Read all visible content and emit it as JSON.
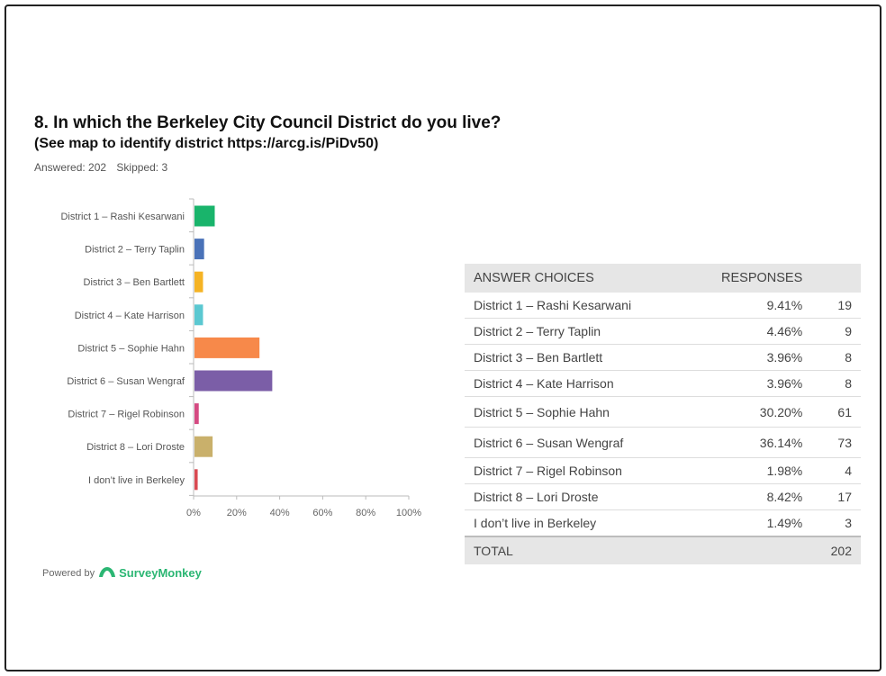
{
  "question": {
    "title": "8. In which the Berkeley City Council District do you live?",
    "subtitle": "(See map to identify district https://arcg.is/PiDv50)",
    "answered": "Answered: 202",
    "skipped": "Skipped: 3"
  },
  "chart_data": {
    "type": "bar",
    "orientation": "horizontal",
    "categories": [
      "District 1 – Rashi Kesarwani",
      "District 2 – Terry Taplin",
      "District 3 – Ben Bartlett",
      "District 4 – Kate Harrison",
      "District 5 – Sophie Hahn",
      "District 6 – Susan Wengraf",
      "District 7 – Rigel Robinson",
      "District 8 – Lori Droste",
      "I don’t live in Berkeley"
    ],
    "values": [
      9.41,
      4.46,
      3.96,
      3.96,
      30.2,
      36.14,
      1.98,
      8.42,
      1.49
    ],
    "colors": [
      "#19b46b",
      "#4a72b8",
      "#f5b324",
      "#5bc8d1",
      "#f7894a",
      "#7b5ea7",
      "#d54a82",
      "#c9b06b",
      "#d94a52"
    ],
    "xlim": [
      0,
      100
    ],
    "xticks": [
      "0%",
      "20%",
      "40%",
      "60%",
      "80%",
      "100%"
    ],
    "grid": false,
    "legend": "none"
  },
  "table": {
    "header_choices": "ANSWER CHOICES",
    "header_responses": "RESPONSES",
    "rows": [
      {
        "label": "District 1 – Rashi Kesarwani",
        "percent": "9.41%",
        "count": "19"
      },
      {
        "label": "District 2 – Terry Taplin",
        "percent": "4.46%",
        "count": "9"
      },
      {
        "label": "District 3 – Ben Bartlett",
        "percent": "3.96%",
        "count": "8"
      },
      {
        "label": "District 4 – Kate Harrison",
        "percent": "3.96%",
        "count": "8"
      },
      {
        "label": "District 5 – Sophie Hahn",
        "percent": "30.20%",
        "count": "61"
      },
      {
        "label": "District 6 – Susan Wengraf",
        "percent": "36.14%",
        "count": "73"
      },
      {
        "label": "District 7 – Rigel Robinson",
        "percent": "1.98%",
        "count": "4"
      },
      {
        "label": "District 8 – Lori Droste",
        "percent": "8.42%",
        "count": "17"
      },
      {
        "label": "I don’t live in Berkeley",
        "percent": "1.49%",
        "count": "3"
      }
    ],
    "total_label": "TOTAL",
    "total_value": "202"
  },
  "footer": {
    "powered_by": "Powered by",
    "brand": "SurveyMonkey",
    "brand_color": "#2bb673"
  }
}
